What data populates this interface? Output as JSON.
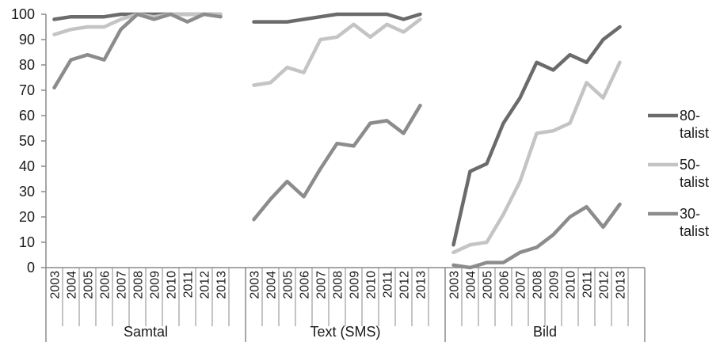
{
  "chart_data": {
    "type": "line",
    "title": "",
    "xlabel": "",
    "ylabel": "",
    "ylim": [
      0,
      100
    ],
    "yticks": [
      0,
      10,
      20,
      30,
      40,
      50,
      60,
      70,
      80,
      90,
      100
    ],
    "grid": false,
    "legend_position": "right",
    "years": [
      "2003",
      "2004",
      "2005",
      "2006",
      "2007",
      "2008",
      "2009",
      "2010",
      "2011",
      "2012",
      "2013"
    ],
    "panels": [
      {
        "label": "Samtal",
        "series": [
          {
            "name": "80-talist",
            "values": [
              98,
              99,
              99,
              99,
              100,
              100,
              100,
              100,
              100,
              100,
              100
            ]
          },
          {
            "name": "50-talist",
            "values": [
              92,
              94,
              95,
              95,
              98,
              100,
              99,
              100,
              100,
              100,
              100
            ]
          },
          {
            "name": "30-talist",
            "values": [
              71,
              82,
              84,
              82,
              94,
              100,
              98,
              100,
              97,
              100,
              99
            ]
          }
        ]
      },
      {
        "label": "Text (SMS)",
        "series": [
          {
            "name": "80-talist",
            "values": [
              97,
              97,
              97,
              98,
              99,
              100,
              100,
              100,
              100,
              98,
              100
            ]
          },
          {
            "name": "50-talist",
            "values": [
              72,
              73,
              79,
              77,
              90,
              91,
              96,
              91,
              96,
              93,
              98
            ]
          },
          {
            "name": "30-talist",
            "values": [
              19,
              27,
              34,
              28,
              39,
              49,
              48,
              57,
              58,
              53,
              64
            ]
          }
        ]
      },
      {
        "label": "Bild",
        "series": [
          {
            "name": "80-talist",
            "values": [
              9,
              38,
              41,
              57,
              67,
              81,
              78,
              84,
              81,
              90,
              95
            ]
          },
          {
            "name": "50-talist",
            "values": [
              6,
              9,
              10,
              21,
              34,
              53,
              54,
              57,
              73,
              67,
              81
            ]
          },
          {
            "name": "30-talist",
            "values": [
              1,
              0,
              2,
              2,
              6,
              8,
              13,
              20,
              24,
              16,
              25
            ]
          }
        ]
      }
    ],
    "legend": [
      {
        "name": "80-talist",
        "line1": "80-",
        "line2": "talist",
        "color": "#6b6b6b"
      },
      {
        "name": "50-talist",
        "line1": "50-",
        "line2": "talist",
        "color": "#c4c4c4"
      },
      {
        "name": "30-talist",
        "line1": "30-",
        "line2": "talist",
        "color": "#8c8c8c"
      }
    ],
    "colors": {
      "80-talist": "#6b6b6b",
      "50-talist": "#c4c4c4",
      "30-talist": "#8c8c8c",
      "axis": "#8a8a8a"
    }
  }
}
